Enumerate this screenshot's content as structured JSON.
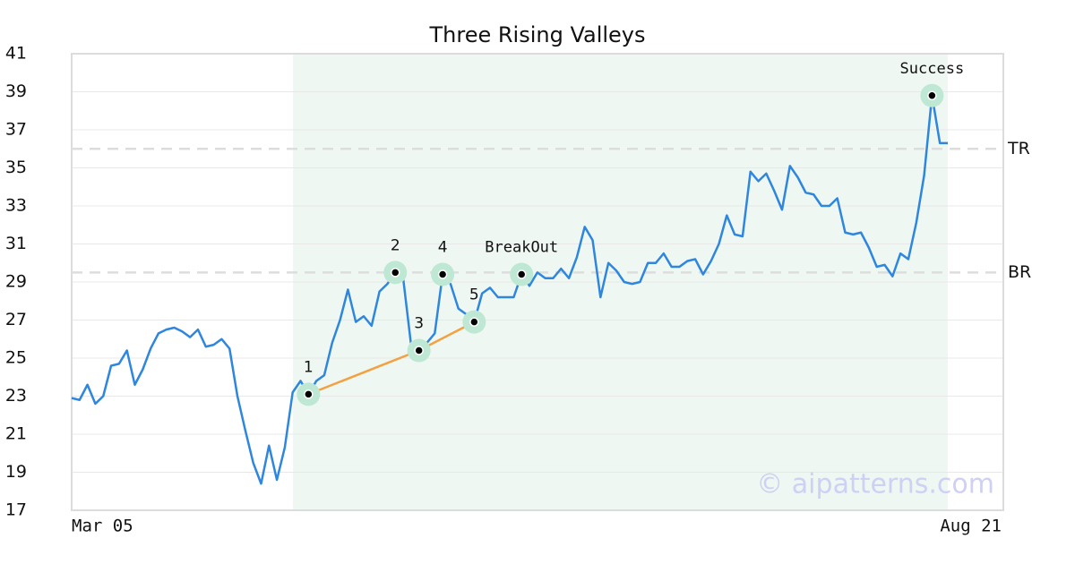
{
  "chart_data": {
    "type": "line",
    "title": "Three Rising Valleys",
    "color": "#2e86de",
    "categories": [
      "Mar 05",
      null,
      null,
      null,
      null,
      null,
      null,
      null,
      null,
      null,
      null,
      null,
      null,
      null,
      null,
      null,
      null,
      null,
      null,
      null,
      null,
      null,
      null,
      null,
      null,
      null,
      null,
      null,
      null,
      null,
      null,
      null,
      null,
      null,
      null,
      null,
      null,
      null,
      null,
      null,
      null,
      null,
      null,
      null,
      null,
      null,
      null,
      null,
      null,
      null,
      null,
      null,
      null,
      null,
      null,
      null,
      null,
      null,
      null,
      null,
      null,
      null,
      null,
      null,
      null,
      null,
      null,
      null,
      null,
      null,
      null,
      null,
      null,
      null,
      null,
      null,
      null,
      null,
      null,
      null,
      null,
      null,
      null,
      null,
      null,
      null,
      null,
      null,
      null,
      null,
      null,
      null,
      null,
      null,
      null,
      null,
      null,
      null,
      null,
      null,
      null,
      null,
      null,
      null,
      null,
      null,
      null,
      null,
      null,
      null,
      null,
      "Aug 21"
    ],
    "values": [
      22.9,
      22.8,
      23.6,
      22.6,
      23.0,
      24.6,
      24.7,
      25.4,
      23.6,
      24.4,
      25.5,
      26.3,
      26.5,
      26.6,
      26.4,
      26.1,
      26.5,
      25.6,
      25.7,
      26.0,
      25.5,
      23.0,
      21.2,
      19.5,
      18.4,
      20.4,
      18.6,
      20.3,
      23.2,
      23.8,
      23.1,
      23.8,
      24.1,
      25.8,
      27.0,
      28.6,
      26.9,
      27.2,
      26.7,
      28.5,
      28.9,
      29.5,
      29.2,
      25.7,
      25.4,
      25.8,
      26.3,
      29.4,
      28.9,
      27.6,
      27.3,
      26.9,
      28.4,
      28.7,
      28.2,
      28.2,
      28.2,
      29.4,
      28.8,
      29.5,
      29.2,
      29.2,
      29.7,
      29.2,
      30.3,
      31.9,
      31.2,
      28.2,
      30.0,
      29.6,
      29.0,
      28.9,
      29.0,
      30.0,
      30.0,
      30.5,
      29.8,
      29.8,
      30.1,
      30.2,
      29.4,
      30.1,
      31.0,
      32.5,
      31.5,
      31.4,
      34.8,
      34.3,
      34.7,
      33.8,
      32.8,
      35.1,
      34.5,
      33.7,
      33.6,
      33.0,
      33.0,
      33.4,
      31.6,
      31.5,
      31.6,
      30.8,
      29.8,
      29.9,
      29.3,
      30.5,
      30.2,
      32.1,
      34.6,
      38.8,
      36.3,
      36.3
    ],
    "ylim": [
      17,
      41
    ],
    "yticks": [
      17,
      19,
      21,
      23,
      25,
      27,
      29,
      31,
      33,
      35,
      37,
      39,
      41
    ],
    "grid": true,
    "reference_lines": [
      {
        "label": "TR",
        "value": 36
      },
      {
        "label": "BR",
        "value": 29.5
      }
    ],
    "annotations": [
      {
        "label": "1",
        "index": 30
      },
      {
        "label": "2",
        "index": 41
      },
      {
        "label": "3",
        "index": 44
      },
      {
        "label": "4",
        "index": 47
      },
      {
        "label": "5",
        "index": 51
      },
      {
        "label": "BreakOut",
        "index": 57
      },
      {
        "label": "Success",
        "index": 109
      }
    ],
    "trend_line": {
      "color": "#f4a040",
      "indices": [
        30,
        44,
        51
      ]
    },
    "watermark": "© aipatterns.com"
  }
}
